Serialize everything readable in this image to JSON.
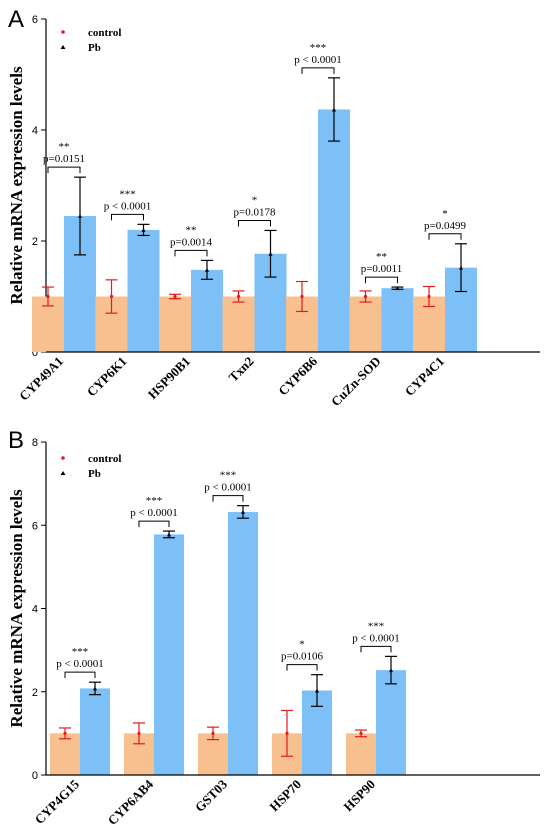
{
  "colors": {
    "control_bar": "#F9C08F",
    "pb_bar": "#7DC0F7",
    "control_err": "#E41A1C",
    "pb_err": "#000000"
  },
  "chart_data": [
    {
      "panel": "A",
      "type": "bar",
      "ylabel": "Relative mRNA expression levels",
      "ylim": [
        0,
        6
      ],
      "yticks": [
        0,
        2,
        4,
        6
      ],
      "legend_position": "top-left",
      "series": [
        {
          "name": "control",
          "values": [
            1.0,
            1.0,
            1.0,
            1.0,
            1.0,
            1.0,
            1.0
          ],
          "errors": [
            0.17,
            0.3,
            0.04,
            0.1,
            0.27,
            0.1,
            0.18
          ]
        },
        {
          "name": "Pb",
          "values": [
            2.45,
            2.2,
            1.48,
            1.77,
            4.37,
            1.15,
            1.52
          ],
          "errors": [
            0.7,
            0.1,
            0.17,
            0.42,
            0.57,
            0.02,
            0.43
          ]
        }
      ],
      "categories": [
        "CYP49A1",
        "CYP6K1",
        "HSP90B1",
        "Txn2",
        "CYP6B6",
        "CuZn-SOD",
        "CYP4C1"
      ],
      "significance": [
        "**",
        "***",
        "**",
        "*",
        "***",
        "**",
        "*"
      ],
      "pvalues": [
        "p=0.0151",
        "p<0.0001",
        "p=0.0014",
        "p=0.0178",
        "p<0.0001",
        "p=0.0011",
        "p=0.0499"
      ]
    },
    {
      "panel": "B",
      "type": "bar",
      "ylabel": "Relative mRNA expression levels",
      "ylim": [
        0,
        8
      ],
      "yticks": [
        0,
        2,
        4,
        6,
        8
      ],
      "legend_position": "top-left",
      "series": [
        {
          "name": "control",
          "values": [
            1.0,
            1.0,
            1.0,
            1.0,
            1.0
          ],
          "errors": [
            0.13,
            0.25,
            0.15,
            0.55,
            0.08
          ]
        },
        {
          "name": "Pb",
          "values": [
            2.08,
            5.78,
            6.32,
            2.03,
            2.52
          ],
          "errors": [
            0.15,
            0.08,
            0.15,
            0.38,
            0.33
          ]
        }
      ],
      "categories": [
        "CYP4G15",
        "CYP6AB4",
        "GST03",
        "HSP70",
        "HSP90"
      ],
      "significance": [
        "***",
        "***",
        "***",
        "*",
        "***"
      ],
      "pvalues": [
        "p<0.0001",
        "p<0.0001",
        "p<0.0001",
        "p=0.0106",
        "p<0.0001"
      ]
    }
  ]
}
